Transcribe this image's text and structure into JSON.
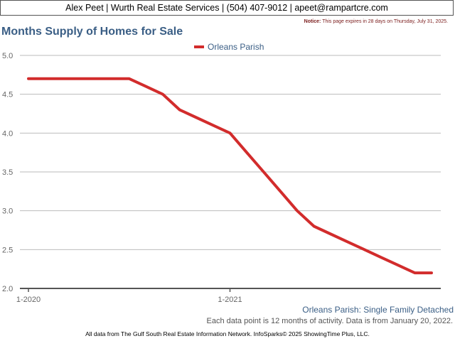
{
  "header": {
    "contact_line": "Alex Peet | Wurth Real Estate Services | (504) 407-9012 | apeet@rampartcre.com"
  },
  "notice": {
    "label": "Notice:",
    "text": "This page expires in 28 days on Thursday, July 31, 2025."
  },
  "captions": {
    "series_caption": "Orleans Parish: Single Family Detached",
    "data_note": "Each data point is 12 months of activity. Data is from January 20, 2022."
  },
  "footer": {
    "text": "All data from The Gulf South Real Estate Information Network. InfoSparks© 2025 ShowingTime Plus, LLC."
  },
  "colors": {
    "series_line": "#d22c2c",
    "title": "#3a5e85",
    "grid": "#bbbbbb",
    "axis": "#555555"
  },
  "chart_data": {
    "type": "line",
    "title": "Months Supply of Homes for Sale",
    "xlabel": "",
    "ylabel": "",
    "ylim": [
      2.0,
      5.0
    ],
    "yticks": [
      "5.0",
      "4.5",
      "4.0",
      "3.5",
      "3.0",
      "2.5",
      "2.0"
    ],
    "xtick_labels": [
      "1-2020",
      "1-2021"
    ],
    "legend_position": "top-center",
    "grid": true,
    "x": [
      "2020-01",
      "2020-02",
      "2020-03",
      "2020-04",
      "2020-05",
      "2020-06",
      "2020-07",
      "2020-08",
      "2020-09",
      "2020-10",
      "2020-11",
      "2020-12",
      "2021-01",
      "2021-02",
      "2021-03",
      "2021-04",
      "2021-05",
      "2021-06",
      "2021-07",
      "2021-08",
      "2021-09",
      "2021-10",
      "2021-11",
      "2021-12",
      "2022-01"
    ],
    "series": [
      {
        "name": "Orleans Parish",
        "values": [
          4.7,
          4.7,
          4.7,
          4.7,
          4.7,
          4.7,
          4.7,
          4.6,
          4.5,
          4.3,
          4.2,
          4.1,
          4.0,
          3.75,
          3.5,
          3.25,
          3.0,
          2.8,
          2.7,
          2.6,
          2.5,
          2.4,
          2.3,
          2.2,
          2.2
        ]
      }
    ]
  }
}
